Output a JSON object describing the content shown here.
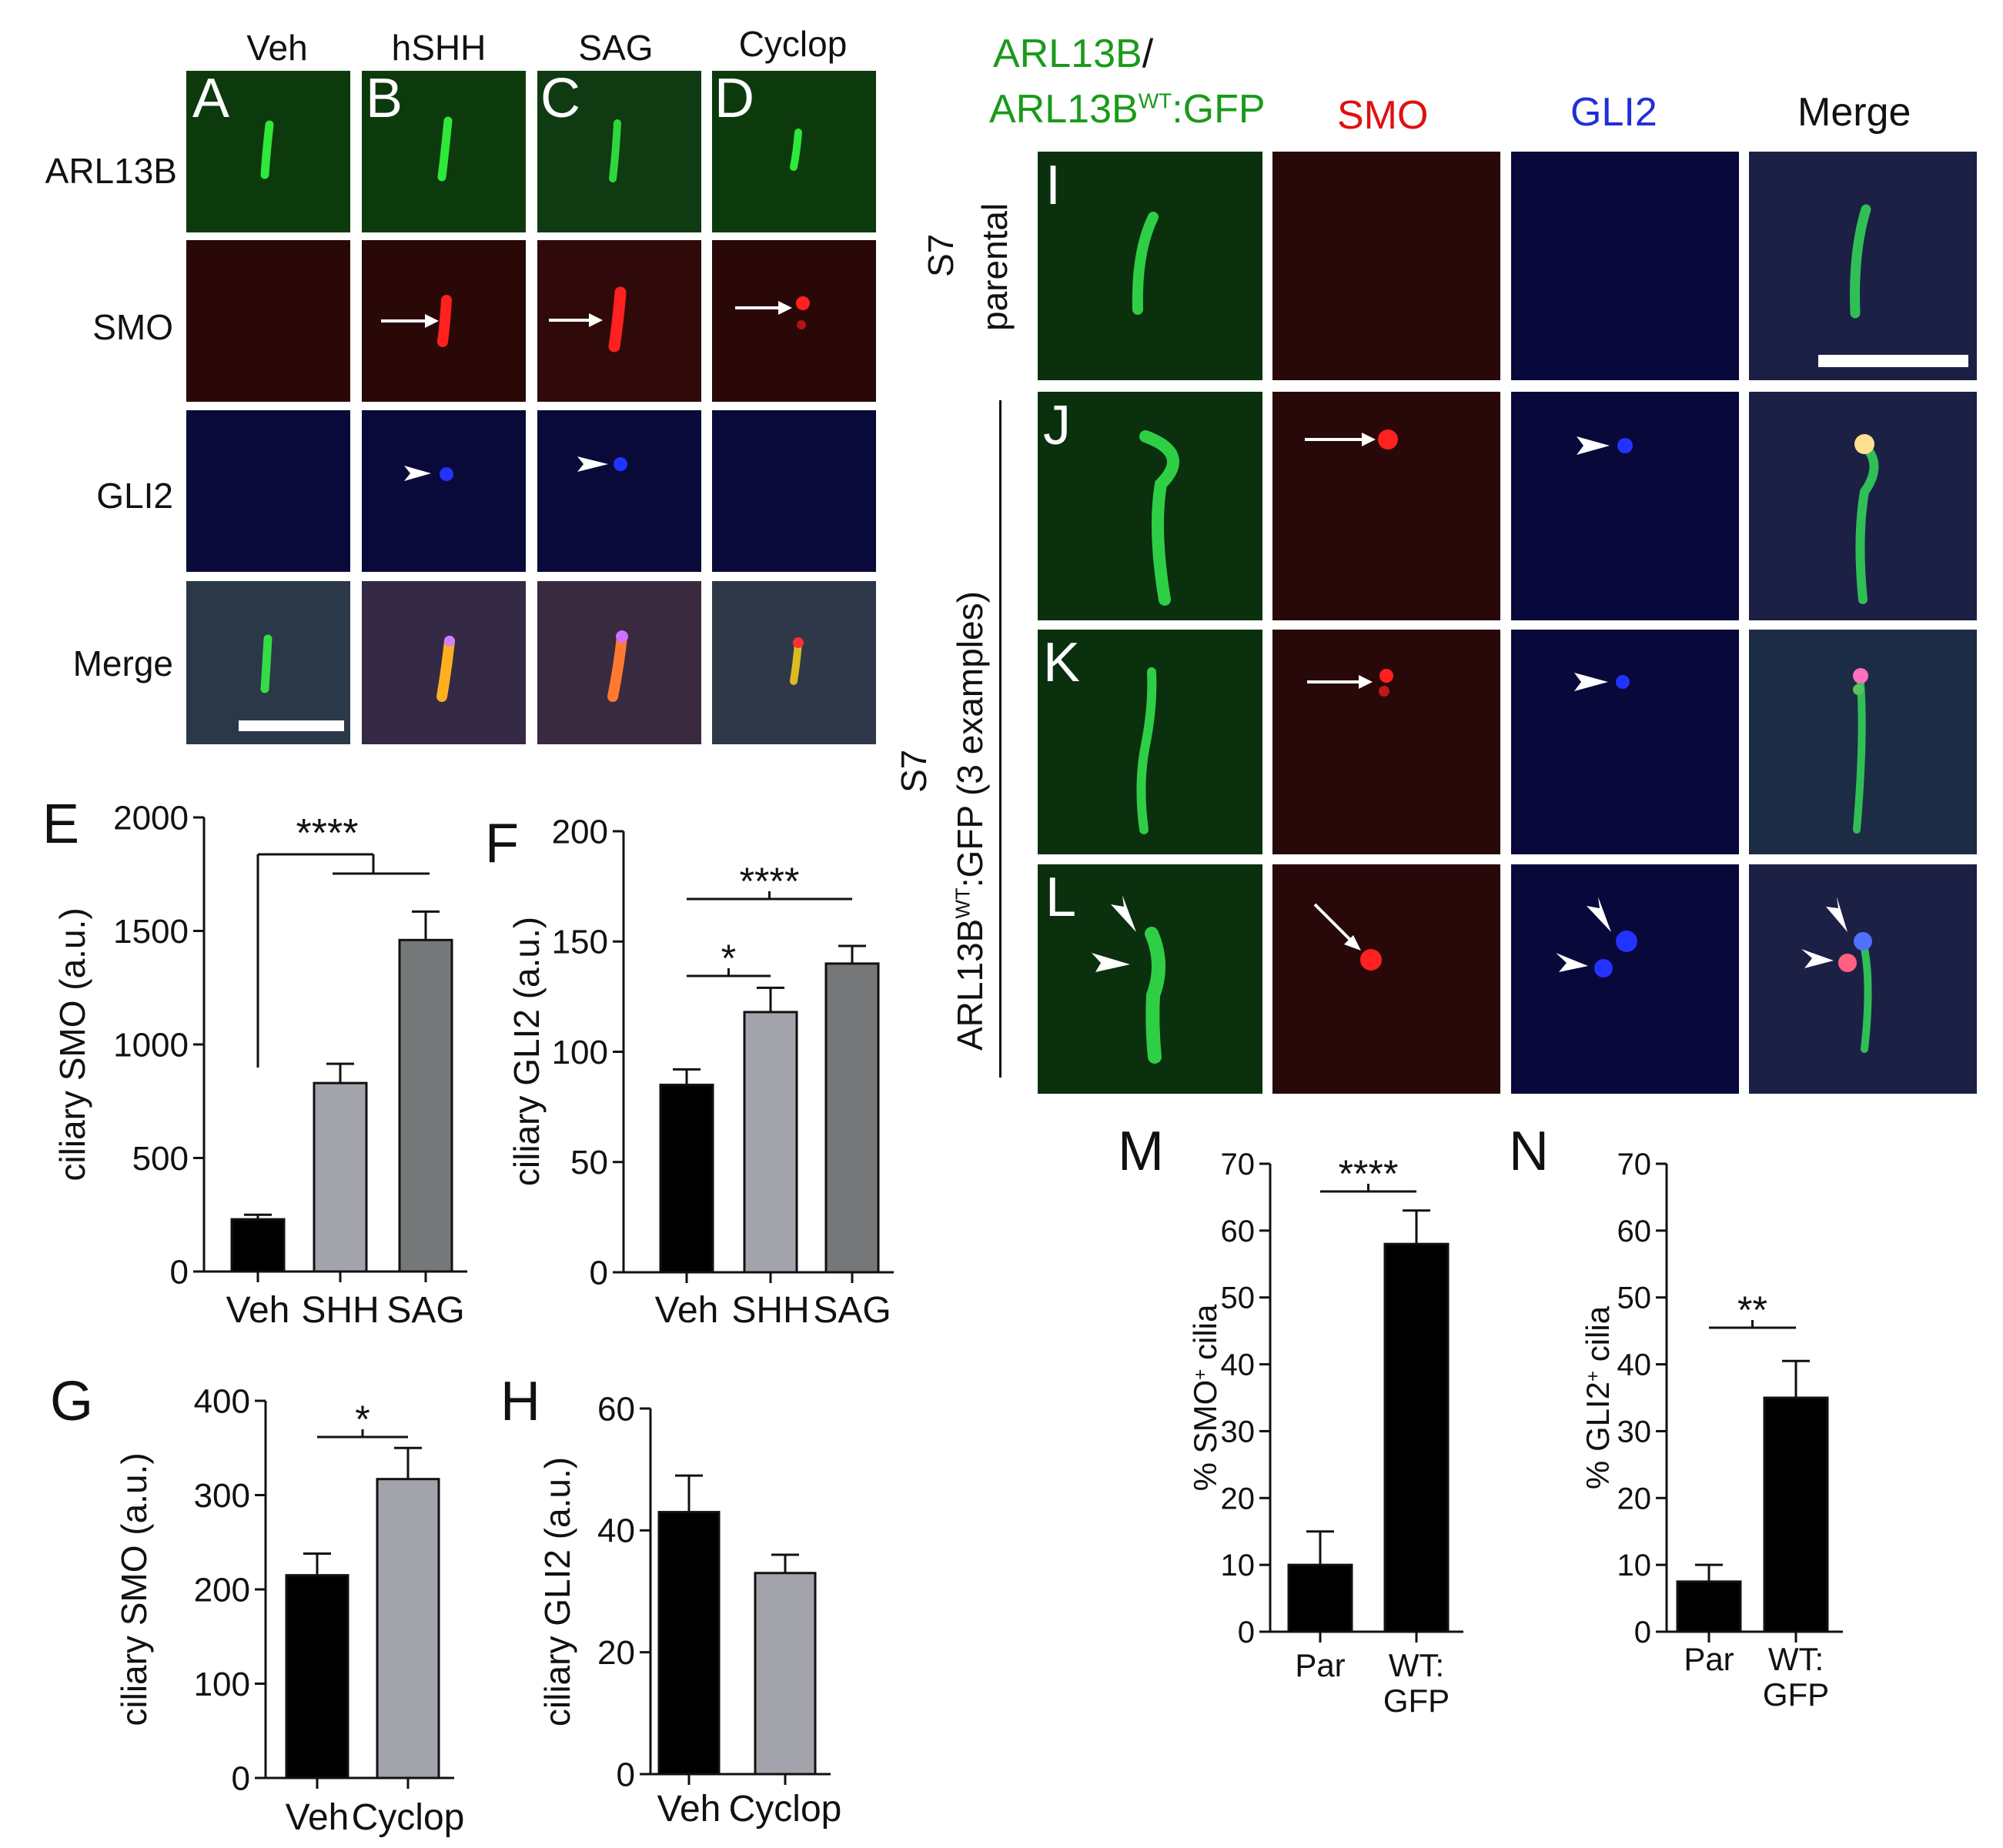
{
  "left_columns": [
    "Veh",
    "hSHH",
    "SAG",
    "Cyclop"
  ],
  "left_rows": [
    "ARL13B",
    "SMO",
    "GLI2",
    "Merge"
  ],
  "left_letters": [
    "A",
    "B",
    "C",
    "D"
  ],
  "right_columns": {
    "green_line1": "ARL13B",
    "green_slash": "/",
    "green_line2_a": "ARL13B",
    "green_line2_sup": "WT",
    "green_line2_b": ":GFP",
    "smo": "SMO",
    "gli2": "GLI2",
    "merge": "Merge"
  },
  "right_rows": {
    "parental_line1": "S7",
    "parental_line2": "parental",
    "gfp_line1": "S7",
    "gfp_line2_a": "ARL13B",
    "gfp_line2_sup": "WT",
    "gfp_line2_b": ":GFP (3 examples)"
  },
  "right_letters": [
    "I",
    "J",
    "K",
    "L"
  ],
  "colors": {
    "green_label": "#1a9a1a",
    "red_label": "#e01010",
    "blue_label": "#1f2fd8",
    "bar_black": "#000000",
    "bar_light": "#a3a4ab",
    "bar_dark": "#767779"
  },
  "chart_data": [
    {
      "panel": "E",
      "type": "bar",
      "ylabel": "ciliary SMO (a.u.)",
      "categories": [
        "Veh",
        "SHH",
        "SAG"
      ],
      "values": [
        230,
        830,
        1460
      ],
      "errors": [
        20,
        85,
        125
      ],
      "ylim": [
        0,
        2000
      ],
      "yticks": [
        0,
        500,
        1000,
        1500,
        2000
      ],
      "significance": "****"
    },
    {
      "panel": "F",
      "type": "bar",
      "ylabel": "ciliary GLI2 (a.u.)",
      "categories": [
        "Veh",
        "SHH",
        "SAG"
      ],
      "values": [
        85,
        118,
        140
      ],
      "errors": [
        7,
        11,
        8
      ],
      "ylim": [
        0,
        200
      ],
      "yticks": [
        0,
        50,
        100,
        150,
        200
      ],
      "significance": [
        "*",
        "****"
      ]
    },
    {
      "panel": "G",
      "type": "bar",
      "ylabel": "ciliary SMO (a.u.)",
      "categories": [
        "Veh",
        "Cyclop"
      ],
      "values": [
        215,
        317
      ],
      "errors": [
        23,
        33
      ],
      "ylim": [
        0,
        400
      ],
      "yticks": [
        0,
        100,
        200,
        300,
        400
      ],
      "significance": "*"
    },
    {
      "panel": "H",
      "type": "bar",
      "ylabel": "ciliary GLI2 (a.u.)",
      "categories": [
        "Veh",
        "Cyclop"
      ],
      "values": [
        43,
        33
      ],
      "errors": [
        6,
        3
      ],
      "ylim": [
        0,
        60
      ],
      "yticks": [
        0,
        20,
        40,
        60
      ],
      "significance": ""
    },
    {
      "panel": "M",
      "type": "bar",
      "ylabel_main": "% SMO",
      "ylabel_sup": "+",
      "ylabel_end": " cilia",
      "categories": [
        [
          "Par"
        ],
        [
          "WT:",
          "GFP"
        ]
      ],
      "values": [
        10,
        58
      ],
      "errors": [
        5,
        5
      ],
      "ylim": [
        0,
        70
      ],
      "yticks": [
        0,
        10,
        20,
        30,
        40,
        50,
        60,
        70
      ],
      "significance": "****"
    },
    {
      "panel": "N",
      "type": "bar",
      "ylabel_main": "% GLI2",
      "ylabel_sup": "+",
      "ylabel_end": " cilia",
      "categories": [
        [
          "Par"
        ],
        [
          "WT:",
          "GFP"
        ]
      ],
      "values": [
        7.5,
        35
      ],
      "errors": [
        2.5,
        5.5
      ],
      "ylim": [
        0,
        70
      ],
      "yticks": [
        0,
        10,
        20,
        30,
        40,
        50,
        60,
        70
      ],
      "significance": "**"
    }
  ]
}
